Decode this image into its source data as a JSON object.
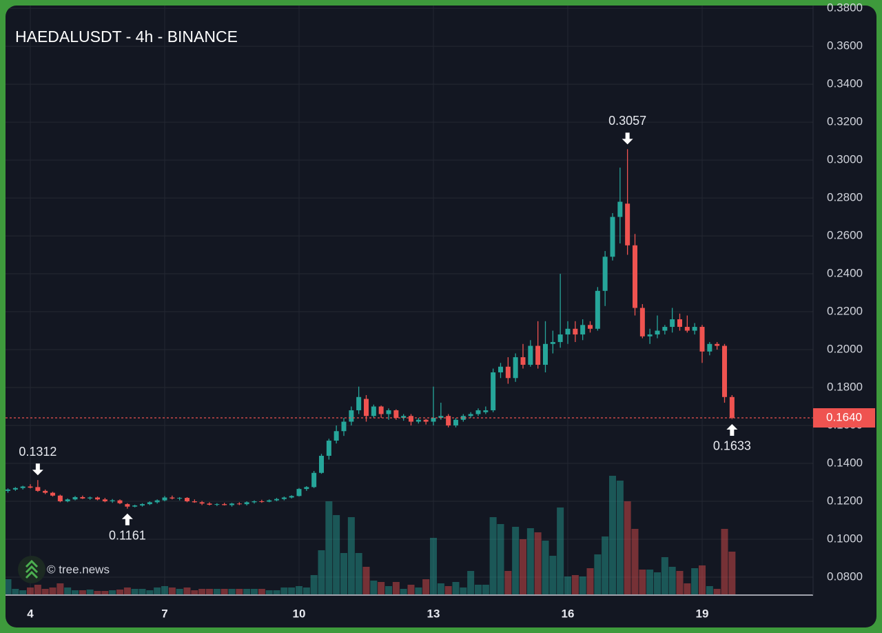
{
  "chart_data": {
    "type": "candlestick",
    "title": "HAEDALUSDT - 4h - BINANCE",
    "watermark": "© tree.news",
    "up_color": "#26a69a",
    "down_color": "#ef5350",
    "grid": true,
    "xlim": [
      3.446,
      21.477
    ],
    "xticks": [
      4,
      7,
      10,
      13,
      16,
      19
    ],
    "ylim": [
      0.0709,
      0.3815
    ],
    "yticks": [
      {
        "value": 0.08,
        "label": "0.0800"
      },
      {
        "value": 0.1,
        "label": "0.1000"
      },
      {
        "value": 0.12,
        "label": "0.1200"
      },
      {
        "value": 0.14,
        "label": "0.1400"
      },
      {
        "value": 0.16,
        "label": "0.1600"
      },
      {
        "value": 0.18,
        "label": "0.1800"
      },
      {
        "value": 0.2,
        "label": "0.2000"
      },
      {
        "value": 0.22,
        "label": "0.2200"
      },
      {
        "value": 0.24,
        "label": "0.2400"
      },
      {
        "value": 0.26,
        "label": "0.2600"
      },
      {
        "value": 0.28,
        "label": "0.2800"
      },
      {
        "value": 0.3,
        "label": "0.3000"
      },
      {
        "value": 0.32,
        "label": "0.3200"
      },
      {
        "value": 0.34,
        "label": "0.3400"
      },
      {
        "value": 0.36,
        "label": "0.3600"
      },
      {
        "value": 0.38,
        "label": "0.3800"
      }
    ],
    "current_price": {
      "value": 0.164,
      "label": "0.1640"
    },
    "annotations": [
      {
        "x": 17.333,
        "price": 0.3057,
        "side": "high"
      },
      {
        "x": 4.167,
        "price": 0.1312,
        "side": "high"
      },
      {
        "x": 6.167,
        "price": 0.1161,
        "side": "low"
      },
      {
        "x": 19.667,
        "price": 0.1633,
        "side": "low"
      }
    ],
    "x": [
      3.5,
      3.667,
      3.833,
      4,
      4.167,
      4.333,
      4.5,
      4.667,
      4.833,
      5,
      5.167,
      5.333,
      5.5,
      5.667,
      5.833,
      6,
      6.167,
      6.333,
      6.5,
      6.667,
      6.833,
      7,
      7.167,
      7.333,
      7.5,
      7.667,
      7.833,
      8,
      8.167,
      8.333,
      8.5,
      8.667,
      8.833,
      9,
      9.167,
      9.333,
      9.5,
      9.667,
      9.833,
      10,
      10.167,
      10.333,
      10.5,
      10.667,
      10.833,
      11,
      11.167,
      11.333,
      11.5,
      11.667,
      11.833,
      12,
      12.167,
      12.333,
      12.5,
      12.667,
      12.833,
      13,
      13.167,
      13.333,
      13.5,
      13.667,
      13.833,
      14,
      14.167,
      14.333,
      14.5,
      14.667,
      14.833,
      15,
      15.167,
      15.333,
      15.5,
      15.667,
      15.833,
      16,
      16.167,
      16.333,
      16.5,
      16.667,
      16.833,
      17,
      17.167,
      17.333,
      17.5,
      17.667,
      17.833,
      18,
      18.167,
      18.333,
      18.5,
      18.667,
      18.833,
      19,
      19.167,
      19.333,
      19.5,
      19.667
    ],
    "open": [
      0.1255,
      0.1262,
      0.127,
      0.1278,
      0.1275,
      0.1255,
      0.1245,
      0.123,
      0.12,
      0.121,
      0.1222,
      0.1215,
      0.122,
      0.121,
      0.12,
      0.1205,
      0.1185,
      0.1172,
      0.1178,
      0.1185,
      0.1195,
      0.1205,
      0.122,
      0.1215,
      0.1218,
      0.12,
      0.1195,
      0.1188,
      0.1182,
      0.1185,
      0.118,
      0.1188,
      0.1185,
      0.1195,
      0.12,
      0.1198,
      0.1205,
      0.1212,
      0.122,
      0.1228,
      0.1265,
      0.1275,
      0.135,
      0.144,
      0.152,
      0.157,
      0.162,
      0.168,
      0.174,
      0.165,
      0.17,
      0.166,
      0.168,
      0.164,
      0.165,
      0.162,
      0.163,
      0.162,
      0.164,
      0.165,
      0.16,
      0.163,
      0.165,
      0.166,
      0.167,
      0.168,
      0.188,
      0.191,
      0.185,
      0.196,
      0.192,
      0.202,
      0.192,
      0.203,
      0.204,
      0.208,
      0.211,
      0.208,
      0.213,
      0.211,
      0.231,
      0.249,
      0.27,
      0.277,
      0.255,
      0.222,
      0.207,
      0.208,
      0.21,
      0.212,
      0.216,
      0.212,
      0.21,
      0.212,
      0.199,
      0.203,
      0.202,
      0.175
    ],
    "high": [
      0.1268,
      0.1275,
      0.1282,
      0.129,
      0.1312,
      0.1262,
      0.125,
      0.1235,
      0.1215,
      0.1228,
      0.123,
      0.1225,
      0.1225,
      0.1218,
      0.1212,
      0.121,
      0.119,
      0.1182,
      0.119,
      0.12,
      0.121,
      0.1228,
      0.123,
      0.1222,
      0.1222,
      0.121,
      0.1202,
      0.1195,
      0.119,
      0.1192,
      0.1192,
      0.1195,
      0.12,
      0.1205,
      0.1208,
      0.121,
      0.1218,
      0.1225,
      0.1232,
      0.127,
      0.128,
      0.136,
      0.145,
      0.153,
      0.16,
      0.164,
      0.17,
      0.1805,
      0.176,
      0.171,
      0.1705,
      0.169,
      0.1685,
      0.166,
      0.166,
      0.164,
      0.1635,
      0.1805,
      0.172,
      0.166,
      0.164,
      0.166,
      0.167,
      0.169,
      0.17,
      0.19,
      0.193,
      0.196,
      0.198,
      0.203,
      0.205,
      0.215,
      0.215,
      0.21,
      0.24,
      0.215,
      0.215,
      0.216,
      0.215,
      0.233,
      0.252,
      0.272,
      0.296,
      0.3057,
      0.261,
      0.224,
      0.211,
      0.218,
      0.213,
      0.222,
      0.219,
      0.218,
      0.214,
      0.213,
      0.204,
      0.204,
      0.203,
      0.176
    ],
    "low": [
      0.1245,
      0.1255,
      0.1262,
      0.1268,
      0.125,
      0.1238,
      0.1225,
      0.1195,
      0.1195,
      0.1205,
      0.1212,
      0.1208,
      0.1205,
      0.1195,
      0.1192,
      0.1185,
      0.1161,
      0.1168,
      0.1172,
      0.118,
      0.1188,
      0.12,
      0.121,
      0.1205,
      0.1195,
      0.1192,
      0.118,
      0.1178,
      0.1175,
      0.1178,
      0.1172,
      0.118,
      0.1178,
      0.1188,
      0.1192,
      0.1195,
      0.12,
      0.1205,
      0.1215,
      0.1225,
      0.1255,
      0.127,
      0.1345,
      0.142,
      0.1505,
      0.1545,
      0.16,
      0.166,
      0.162,
      0.164,
      0.164,
      0.163,
      0.163,
      0.1625,
      0.16,
      0.161,
      0.1605,
      0.16,
      0.163,
      0.159,
      0.159,
      0.162,
      0.164,
      0.165,
      0.166,
      0.167,
      0.185,
      0.182,
      0.183,
      0.19,
      0.191,
      0.19,
      0.188,
      0.198,
      0.201,
      0.203,
      0.204,
      0.205,
      0.209,
      0.21,
      0.223,
      0.247,
      0.256,
      0.25,
      0.218,
      0.206,
      0.203,
      0.206,
      0.208,
      0.209,
      0.21,
      0.209,
      0.208,
      0.193,
      0.197,
      0.2,
      0.172,
      0.1633
    ],
    "close": [
      0.1262,
      0.127,
      0.1278,
      0.1272,
      0.1255,
      0.1245,
      0.123,
      0.12,
      0.121,
      0.1222,
      0.1215,
      0.122,
      0.121,
      0.12,
      0.1205,
      0.119,
      0.1172,
      0.1178,
      0.1185,
      0.1195,
      0.1205,
      0.122,
      0.1215,
      0.1218,
      0.12,
      0.1195,
      0.1188,
      0.1182,
      0.1185,
      0.118,
      0.1188,
      0.1185,
      0.1195,
      0.12,
      0.1198,
      0.1205,
      0.1212,
      0.122,
      0.1228,
      0.1265,
      0.1275,
      0.135,
      0.144,
      0.152,
      0.157,
      0.162,
      0.168,
      0.175,
      0.165,
      0.17,
      0.166,
      0.168,
      0.164,
      0.165,
      0.162,
      0.163,
      0.162,
      0.164,
      0.165,
      0.16,
      0.163,
      0.165,
      0.166,
      0.168,
      0.168,
      0.188,
      0.191,
      0.185,
      0.196,
      0.192,
      0.202,
      0.192,
      0.203,
      0.204,
      0.208,
      0.211,
      0.208,
      0.213,
      0.211,
      0.231,
      0.249,
      0.27,
      0.278,
      0.255,
      0.222,
      0.207,
      0.208,
      0.21,
      0.212,
      0.216,
      0.212,
      0.21,
      0.212,
      0.199,
      0.203,
      0.202,
      0.175,
      0.164
    ],
    "volumes": [
      22,
      8,
      6,
      10,
      14,
      8,
      10,
      16,
      10,
      6,
      6,
      7,
      5,
      5,
      6,
      7,
      10,
      8,
      8,
      6,
      10,
      12,
      10,
      8,
      10,
      6,
      8,
      8,
      8,
      8,
      8,
      8,
      8,
      8,
      8,
      6,
      6,
      10,
      10,
      12,
      10,
      28,
      64,
      135,
      115,
      60,
      112,
      60,
      40,
      20,
      18,
      12,
      18,
      8,
      14,
      10,
      22,
      82,
      16,
      12,
      18,
      10,
      34,
      14,
      14,
      112,
      102,
      34,
      98,
      80,
      96,
      90,
      78,
      56,
      126,
      26,
      28,
      26,
      38,
      58,
      84,
      172,
      165,
      135,
      95,
      36,
      36,
      32,
      54,
      40,
      34,
      16,
      38,
      42,
      12,
      8,
      95,
      62
    ]
  }
}
